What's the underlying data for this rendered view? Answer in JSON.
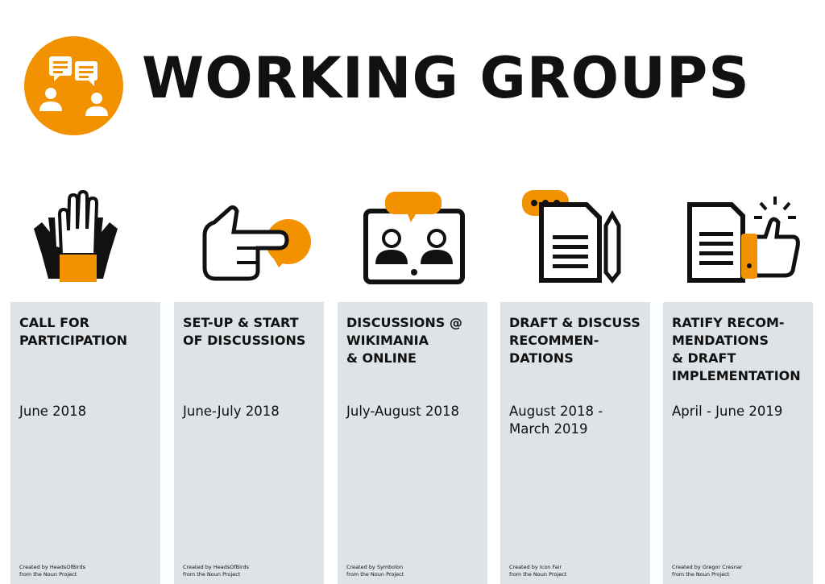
{
  "header": {
    "title": "WORKING GROUPS",
    "logo_icon": "discussion-group-icon"
  },
  "colors": {
    "accent": "#f39200",
    "column_bg": "#dde3e6",
    "text": "#111111"
  },
  "stages": [
    {
      "icon": "raised-hands-icon",
      "title": "CALL FOR\nPARTICIPATION",
      "date": "June 2018",
      "credit": "Created by HeadsOfBirds\nfrom the Noun Project"
    },
    {
      "icon": "pointing-hand-speech-icon",
      "title": "SET-UP & START\nOF DISCUSSIONS",
      "date": "June-July 2018",
      "credit": "Created by HeadsOfBirds\nfrom the Noun Project"
    },
    {
      "icon": "video-chat-icon",
      "title": "DISCUSSIONS @\nWIKIMANIA\n& ONLINE",
      "date": "July-August 2018",
      "credit": "Created by Symbolon\nfrom the Noun Project"
    },
    {
      "icon": "document-pencil-icon",
      "title": "DRAFT & DISCUSS\nRECOMMEN-\nDATIONS",
      "date": "August 2018 -\nMarch 2019",
      "credit": "Created by Icon Fair\nfrom the Noun Project"
    },
    {
      "icon": "document-thumbs-up-icon",
      "title": "RATIFY RECOM-\nMENDATIONS\n& DRAFT\nIMPLEMENTATION",
      "date": "April  - June 2019",
      "credit": "Created by Gregor Cresnar\nfrom the Noun Project"
    }
  ]
}
